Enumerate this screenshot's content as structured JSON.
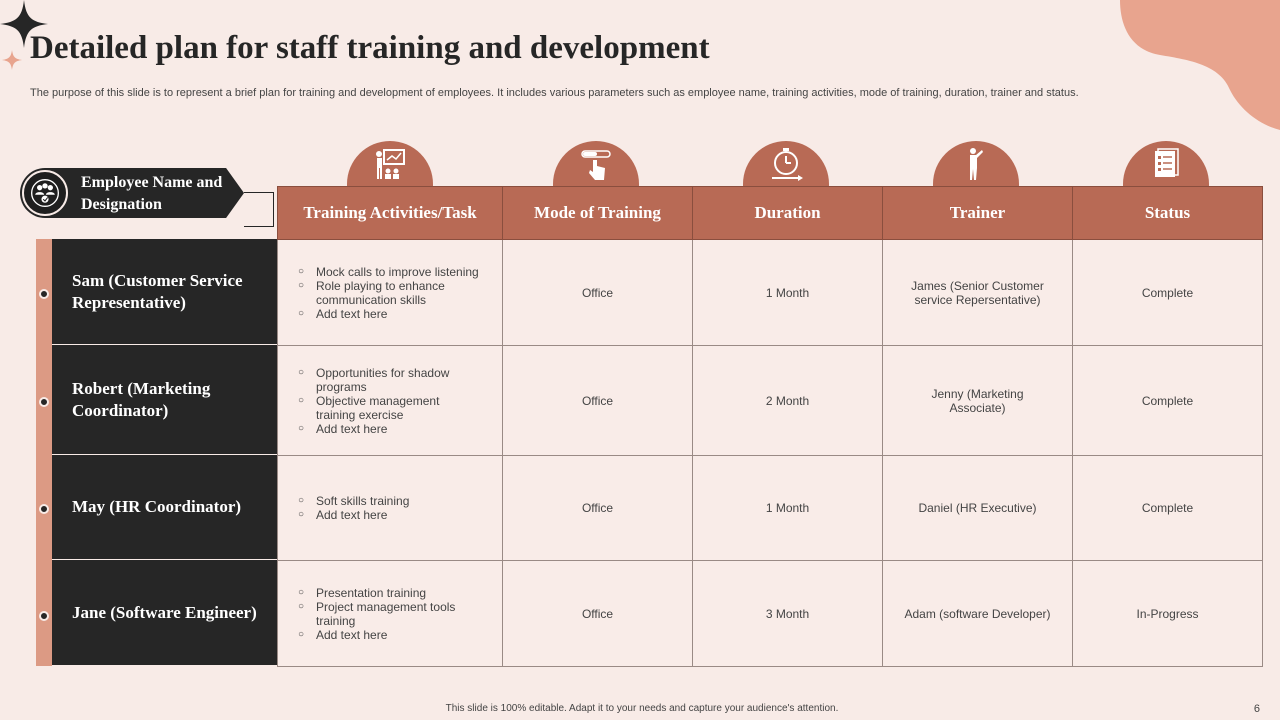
{
  "title": "Detailed plan for staff training and development",
  "subtitle": "The purpose of this slide is to represent a brief plan for training and development of employees. It includes various parameters such as employee name, training activities, mode of training, duration, trainer and status.",
  "employee_header": "Employee Name and Designation",
  "columns": [
    "Training Activities/Task",
    "Mode of Training",
    "Duration",
    "Trainer",
    "Status"
  ],
  "column_icons": [
    "presentation-icon",
    "touch-slider-icon",
    "stopwatch-icon",
    "trainer-person-icon",
    "checklist-icon"
  ],
  "rows": [
    {
      "employee": "Sam (Customer Service Representative)",
      "tasks": [
        "Mock calls to improve listening",
        "Role playing to enhance communication skills",
        "Add text here"
      ],
      "mode": "Office",
      "duration": "1 Month",
      "trainer": "James (Senior Customer service Repersentative)",
      "status": "Complete"
    },
    {
      "employee": "Robert (Marketing Coordinator)",
      "tasks": [
        "Opportunities for shadow programs",
        "Objective management training exercise",
        "Add text here"
      ],
      "mode": "Office",
      "duration": "2 Month",
      "trainer": "Jenny (Marketing Associate)",
      "status": "Complete"
    },
    {
      "employee": "May (HR Coordinator)",
      "tasks": [
        "Soft skills training",
        "Add text here"
      ],
      "mode": "Office",
      "duration": "1 Month",
      "trainer": "Daniel (HR Executive)",
      "status": "Complete"
    },
    {
      "employee": "Jane (Software Engineer)",
      "tasks": [
        "Presentation training",
        "Project management tools training",
        "Add text here"
      ],
      "mode": "Office",
      "duration": "3 Month",
      "trainer": "Adam (software Developer)",
      "status": "In-Progress"
    }
  ],
  "footer": "This slide is 100% editable. Adapt it to your needs and capture your audience's attention.",
  "page_number": "6",
  "colors": {
    "background": "#f8ebe7",
    "accent": "#b86a55",
    "dark": "#262626",
    "strip": "#dc9a84",
    "blob": "#e8a48e"
  }
}
